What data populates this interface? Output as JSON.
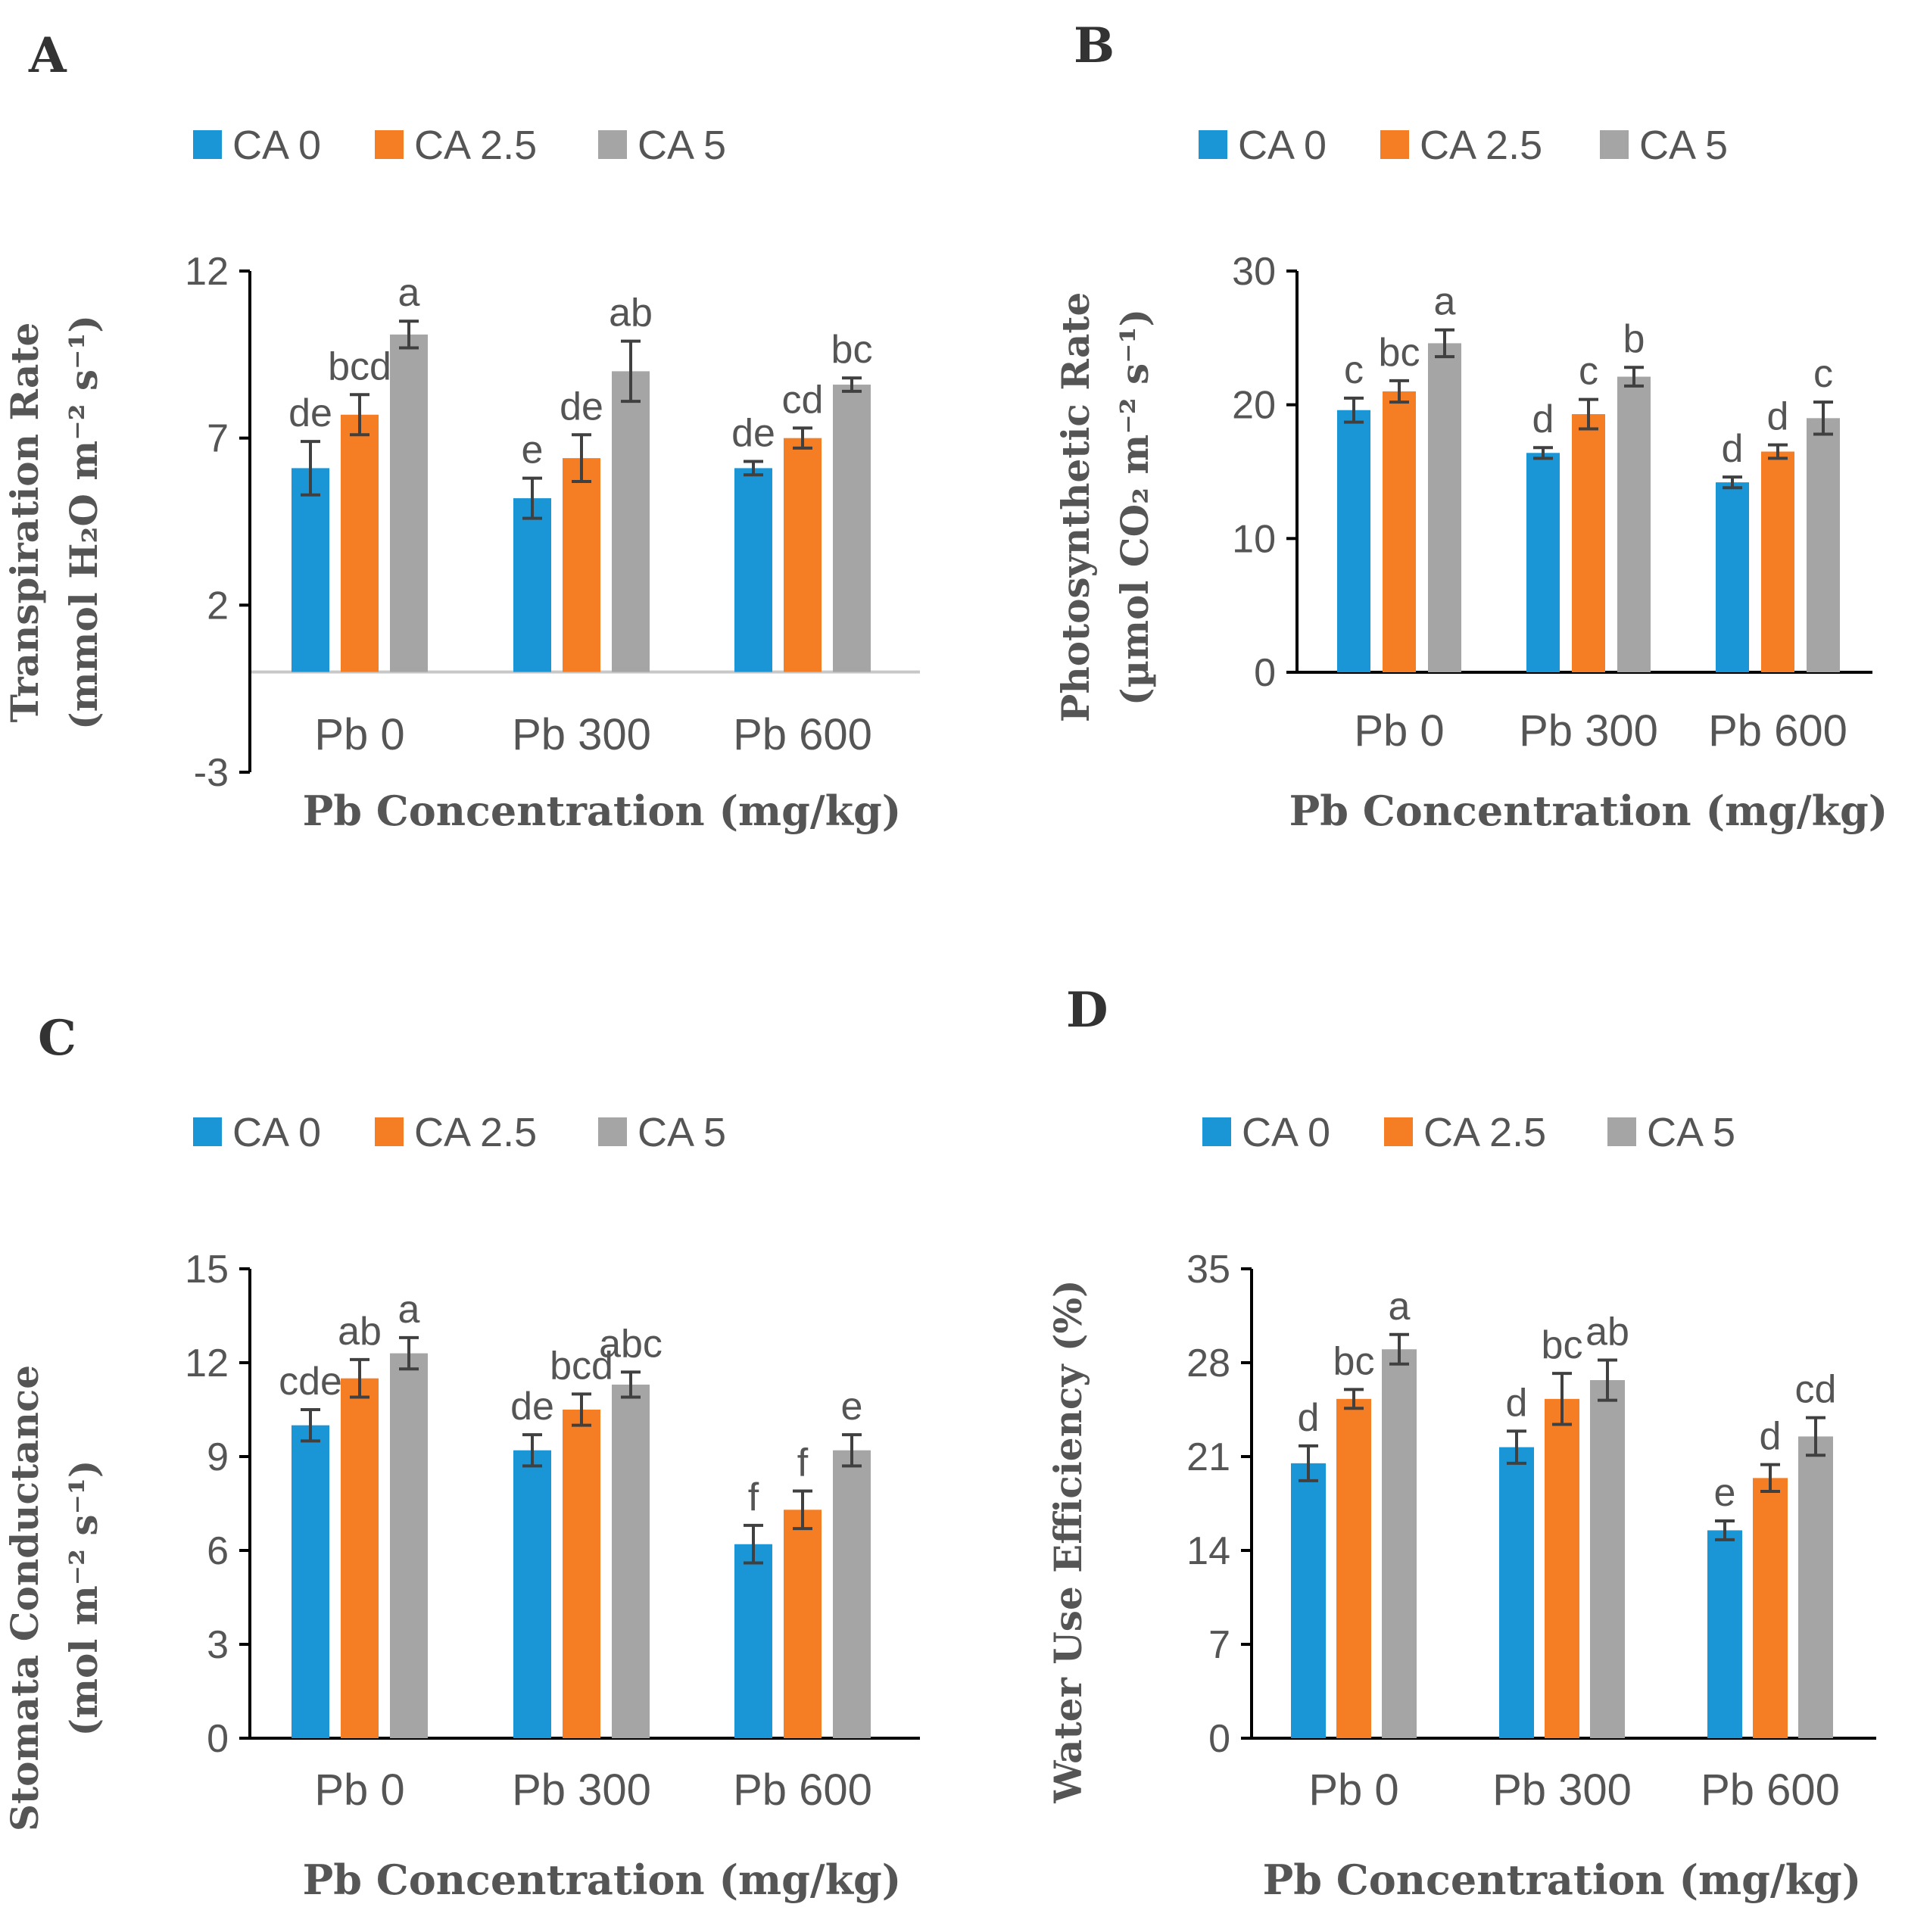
{
  "colors": {
    "CA 0": "#1a96d6",
    "CA 2.5": "#f57e25",
    "CA 5": "#a5a5a5",
    "axis": "#000000",
    "baseline": "#c8c8c8",
    "errbar": "#404040"
  },
  "chart_data": [
    {
      "panel_label": "A",
      "type": "bar",
      "categories": [
        "Pb 0",
        "Pb 300",
        "Pb 600"
      ],
      "legend": [
        "CA 0",
        "CA 2.5",
        "CA 5"
      ],
      "series": [
        {
          "name": "CA 0",
          "values": [
            6.1,
            5.2,
            6.1
          ],
          "errors": [
            0.8,
            0.6,
            0.2
          ],
          "letters": [
            "de",
            "e",
            "de"
          ]
        },
        {
          "name": "CA 2.5",
          "values": [
            7.7,
            6.4,
            7.0
          ],
          "errors": [
            0.6,
            0.7,
            0.3
          ],
          "letters": [
            "bcd",
            "de",
            "cd"
          ]
        },
        {
          "name": "CA 5",
          "values": [
            10.1,
            9.0,
            8.6
          ],
          "errors": [
            0.4,
            0.9,
            0.2
          ],
          "letters": [
            "a",
            "ab",
            "bc"
          ]
        }
      ],
      "yticks": [
        "12",
        "7",
        "2",
        "-3"
      ],
      "ytick_values": [
        12,
        7,
        2,
        -3
      ],
      "ylim": [
        -3,
        12
      ],
      "ylabel_line1": "Transpiration Rate",
      "ylabel_line2": "(mmol H₂O m⁻² s⁻¹)",
      "xlabel": "Pb Concentration (mg/kg)"
    },
    {
      "panel_label": "B",
      "type": "bar",
      "categories": [
        "Pb 0",
        "Pb 300",
        "Pb 600"
      ],
      "legend": [
        "CA 0",
        "CA 2.5",
        "CA 5"
      ],
      "series": [
        {
          "name": "CA 0",
          "values": [
            19.6,
            16.4,
            14.2
          ],
          "errors": [
            0.9,
            0.4,
            0.4
          ],
          "letters": [
            "c",
            "d",
            "d"
          ]
        },
        {
          "name": "CA 2.5",
          "values": [
            21.0,
            19.3,
            16.5
          ],
          "errors": [
            0.8,
            1.1,
            0.5
          ],
          "letters": [
            "bc",
            "c",
            "d"
          ]
        },
        {
          "name": "CA 5",
          "values": [
            24.6,
            22.1,
            19.0
          ],
          "errors": [
            1.0,
            0.7,
            1.2
          ],
          "letters": [
            "a",
            "b",
            "c"
          ]
        }
      ],
      "yticks": [
        "30",
        "20",
        "10",
        "0"
      ],
      "ytick_values": [
        30,
        20,
        10,
        0
      ],
      "ylim": [
        0,
        30
      ],
      "ylabel_line1": "Photosynthetic Rate",
      "ylabel_line2": "(µmol CO₂ m⁻² s⁻¹)",
      "xlabel": "Pb Concentration (mg/kg)"
    },
    {
      "panel_label": "C",
      "type": "bar",
      "categories": [
        "Pb 0",
        "Pb 300",
        "Pb 600"
      ],
      "legend": [
        "CA 0",
        "CA 2.5",
        "CA 5"
      ],
      "series": [
        {
          "name": "CA 0",
          "values": [
            10.0,
            9.2,
            6.2
          ],
          "errors": [
            0.5,
            0.5,
            0.6
          ],
          "letters": [
            "cde",
            "de",
            "f"
          ]
        },
        {
          "name": "CA 2.5",
          "values": [
            11.5,
            10.5,
            7.3
          ],
          "errors": [
            0.6,
            0.5,
            0.6
          ],
          "letters": [
            "ab",
            "bcd",
            "f"
          ]
        },
        {
          "name": "CA 5",
          "values": [
            12.3,
            11.3,
            9.2
          ],
          "errors": [
            0.5,
            0.4,
            0.5
          ],
          "letters": [
            "a",
            "abc",
            "e"
          ]
        }
      ],
      "yticks": [
        "15",
        "12",
        "9",
        "6",
        "3",
        "0"
      ],
      "ytick_values": [
        15,
        12,
        9,
        6,
        3,
        0
      ],
      "ylim": [
        0,
        15
      ],
      "ylabel_line1": "Stomata Conductance",
      "ylabel_line2": "(mol m⁻² s⁻¹)",
      "xlabel": "Pb Concentration (mg/kg)"
    },
    {
      "panel_label": "D",
      "type": "bar",
      "categories": [
        "Pb 0",
        "Pb 300",
        "Pb 600"
      ],
      "legend": [
        "CA 0",
        "CA 2.5",
        "CA 5"
      ],
      "series": [
        {
          "name": "CA 0",
          "values": [
            20.5,
            21.7,
            15.5
          ],
          "errors": [
            1.3,
            1.2,
            0.7
          ],
          "letters": [
            "d",
            "d",
            "e"
          ]
        },
        {
          "name": "CA 2.5",
          "values": [
            25.3,
            25.3,
            19.4
          ],
          "errors": [
            0.7,
            1.9,
            1.0
          ],
          "letters": [
            "bc",
            "bc",
            "d"
          ]
        },
        {
          "name": "CA 5",
          "values": [
            29.0,
            26.7,
            22.5
          ],
          "errors": [
            1.1,
            1.5,
            1.4
          ],
          "letters": [
            "a",
            "ab",
            "cd"
          ]
        }
      ],
      "yticks": [
        "35",
        "28",
        "21",
        "14",
        "7",
        "0"
      ],
      "ytick_values": [
        35,
        28,
        21,
        14,
        7,
        0
      ],
      "ylim": [
        0,
        35
      ],
      "ylabel_line1": "Water Use Efficiency (%)",
      "ylabel_line2": "",
      "xlabel": "Pb Concentration (mg/kg)"
    }
  ]
}
